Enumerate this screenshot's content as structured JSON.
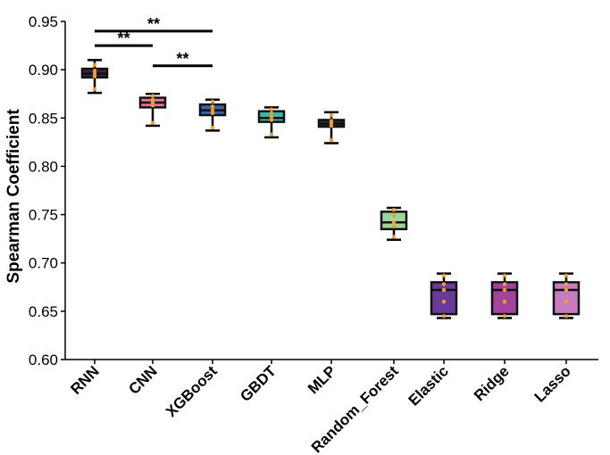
{
  "chart_data": {
    "type": "box",
    "ylabel": "Spearman Coefficient",
    "xlabel": "",
    "ylim": [
      0.6,
      0.95
    ],
    "yticks": [
      "0.60",
      "0.65",
      "0.70",
      "0.75",
      "0.80",
      "0.85",
      "0.90",
      "0.95"
    ],
    "categories": [
      "RNN",
      "CNN",
      "XGBoost",
      "GBDT",
      "MLP",
      "Random_Forest",
      "Elastic",
      "Ridge",
      "Lasso"
    ],
    "boxes": [
      {
        "name": "RNN",
        "min": 0.876,
        "q1": 0.892,
        "median": 0.896,
        "q3": 0.901,
        "max": 0.91,
        "color": "#3b1f45",
        "points": [
          0.88,
          0.893,
          0.896,
          0.899,
          0.905
        ]
      },
      {
        "name": "CNN",
        "min": 0.842,
        "q1": 0.861,
        "median": 0.866,
        "q3": 0.871,
        "max": 0.875,
        "color": "#e6739a",
        "points": [
          0.845,
          0.863,
          0.866,
          0.869,
          0.873
        ]
      },
      {
        "name": "XGBoost",
        "min": 0.837,
        "q1": 0.853,
        "median": 0.858,
        "q3": 0.864,
        "max": 0.869,
        "color": "#3f63a8",
        "points": [
          0.84,
          0.855,
          0.858,
          0.862,
          0.867
        ]
      },
      {
        "name": "GBDT",
        "min": 0.83,
        "q1": 0.846,
        "median": 0.85,
        "q3": 0.857,
        "max": 0.861,
        "color": "#3ab5aa",
        "points": [
          0.833,
          0.848,
          0.851,
          0.855,
          0.859
        ]
      },
      {
        "name": "MLP",
        "min": 0.824,
        "q1": 0.841,
        "median": 0.844,
        "q3": 0.848,
        "max": 0.856,
        "color": "#2a2a2a",
        "points": [
          0.827,
          0.842,
          0.845,
          0.847,
          0.853
        ]
      },
      {
        "name": "Random_Forest",
        "min": 0.724,
        "q1": 0.735,
        "median": 0.742,
        "q3": 0.753,
        "max": 0.757,
        "color": "#9fd49a",
        "points": [
          0.727,
          0.738,
          0.742,
          0.749,
          0.755
        ]
      },
      {
        "name": "Elastic",
        "min": 0.643,
        "q1": 0.647,
        "median": 0.672,
        "q3": 0.68,
        "max": 0.689,
        "color": "#6a3a9a",
        "points": [
          0.645,
          0.66,
          0.672,
          0.678,
          0.687
        ]
      },
      {
        "name": "Ridge",
        "min": 0.643,
        "q1": 0.647,
        "median": 0.672,
        "q3": 0.68,
        "max": 0.689,
        "color": "#a2449e",
        "points": [
          0.645,
          0.66,
          0.672,
          0.678,
          0.687
        ]
      },
      {
        "name": "Lasso",
        "min": 0.643,
        "q1": 0.647,
        "median": 0.672,
        "q3": 0.68,
        "max": 0.689,
        "color": "#c77cc0",
        "points": [
          0.645,
          0.66,
          0.672,
          0.678,
          0.687
        ]
      }
    ],
    "point_color": "#f0a030",
    "significance": [
      {
        "from": "RNN",
        "to": "CNN",
        "y": 0.925,
        "label": "**"
      },
      {
        "from": "RNN",
        "to": "XGBoost",
        "y": 0.94,
        "label": "**"
      },
      {
        "from": "CNN",
        "to": "XGBoost",
        "y": 0.904,
        "label": "**"
      }
    ],
    "grid": false,
    "legend": "none"
  }
}
